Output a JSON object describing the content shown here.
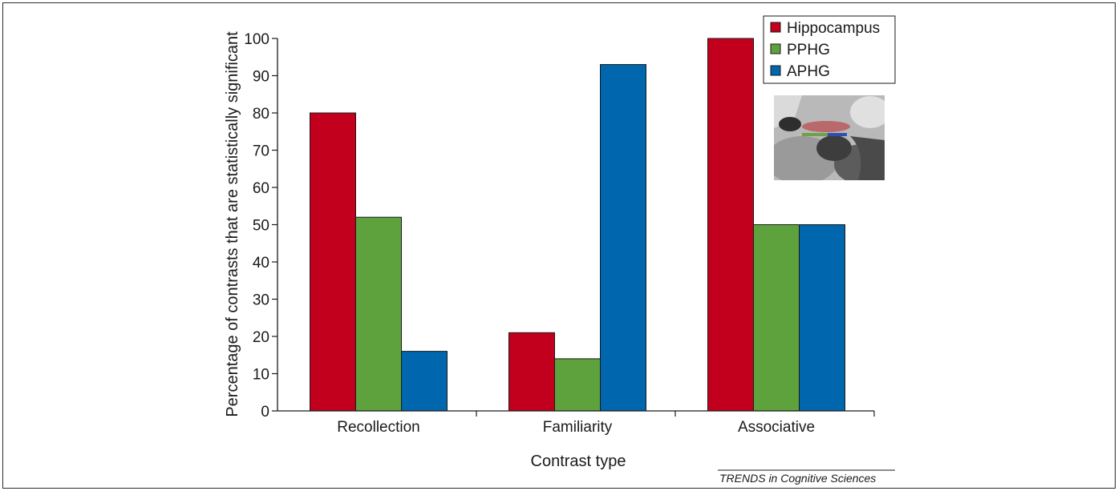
{
  "chart_data": {
    "type": "bar",
    "categories": [
      "Recollection",
      "Familiarity",
      "Associative"
    ],
    "series": [
      {
        "name": "Hippocampus",
        "values": [
          80,
          21,
          100
        ],
        "color": "#c2001e"
      },
      {
        "name": "PPHG",
        "values": [
          52,
          14,
          50
        ],
        "color": "#5ea23e"
      },
      {
        "name": "APHG",
        "values": [
          16,
          93,
          50
        ],
        "color": "#0066ad"
      }
    ],
    "xlabel": "Contrast type",
    "ylabel": "Percentage of contrasts that are statistically significant",
    "ylim": [
      0,
      100
    ],
    "yticks": [
      0,
      10,
      20,
      30,
      40,
      50,
      60,
      70,
      80,
      90,
      100
    ],
    "legend_position": "top-right",
    "grid": false
  },
  "credit": "TRENDS in Cognitive Sciences",
  "inset_image": "brain-mri-slice"
}
